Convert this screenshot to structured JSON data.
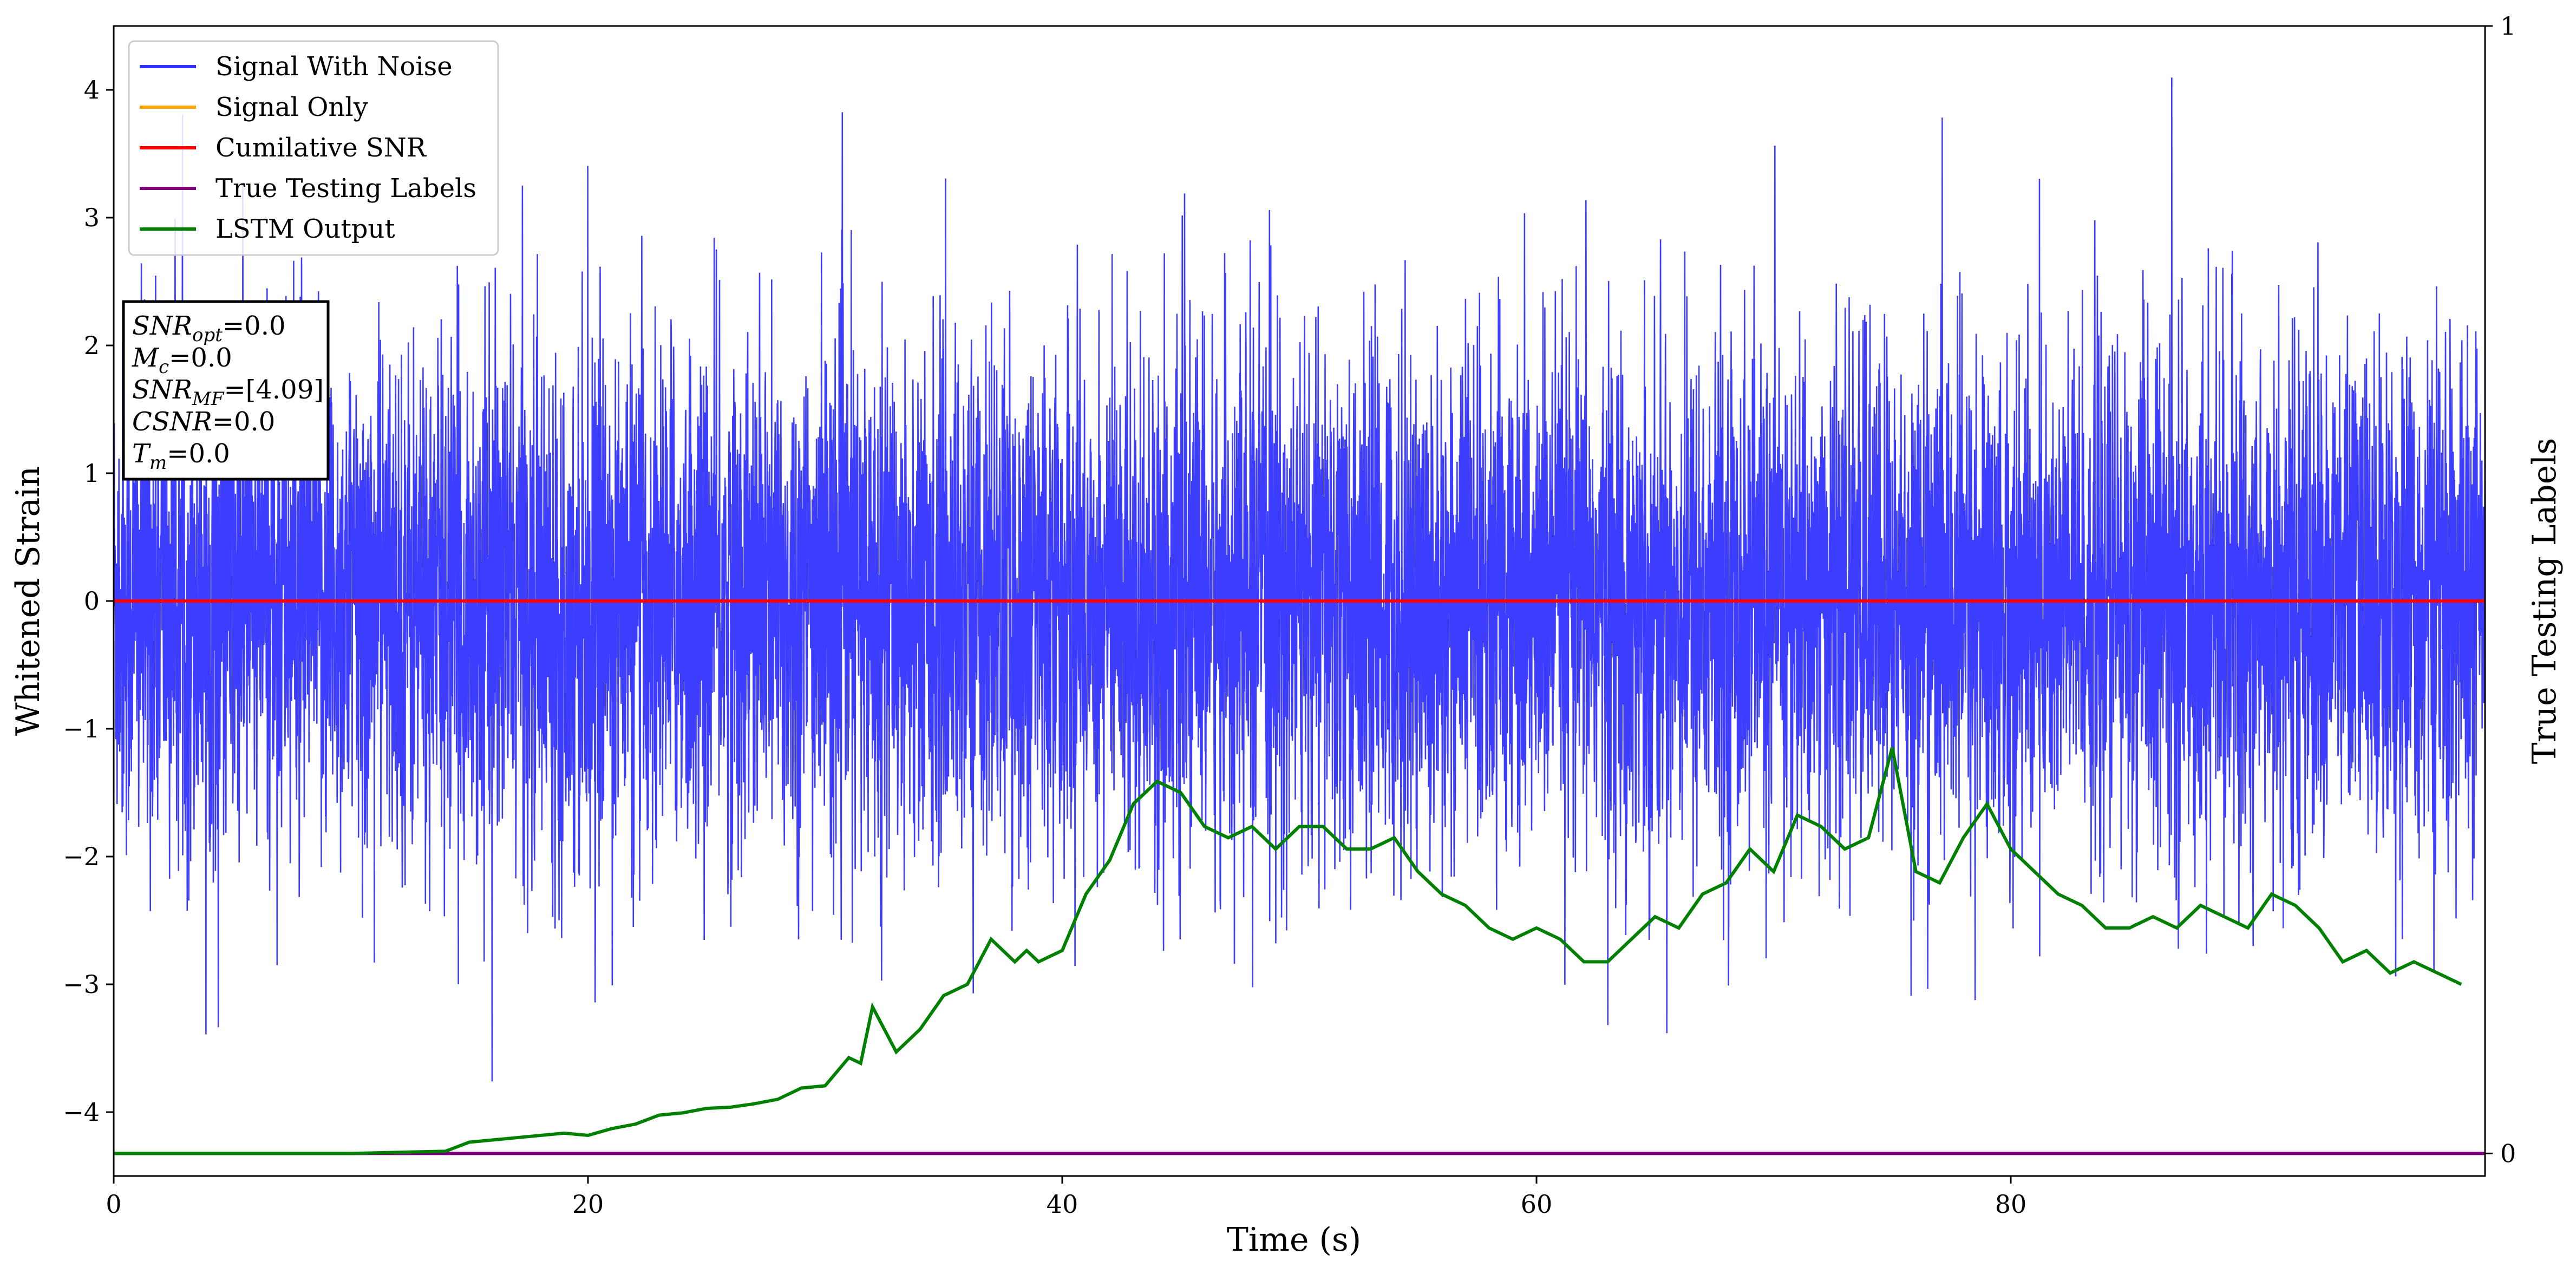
{
  "chart_data": {
    "type": "line",
    "xlabel": "Time (s)",
    "ylabel": "Whitened Strain",
    "y2label": "True Testing Labels",
    "xlim": [
      0,
      100
    ],
    "ylim": [
      -4.5,
      4.5
    ],
    "y2lim": [
      -0.02,
      1
    ],
    "xticks": [
      "0",
      "20",
      "40",
      "60",
      "80"
    ],
    "yticks": [
      "−4",
      "−3",
      "−2",
      "−1",
      "0",
      "1",
      "2",
      "3",
      "4"
    ],
    "y2ticks": [
      "0",
      "1"
    ],
    "legend_position": "top-left",
    "legend": [
      "Signal With Noise",
      "Signal Only",
      "Cumilative SNR",
      "True Testing Labels",
      "LSTM Output"
    ],
    "annotation": {
      "lines": [
        {
          "sym": "SNR",
          "sub": "opt",
          "val": "=0.0"
        },
        {
          "sym": "M",
          "sub": "c",
          "val": "=0.0"
        },
        {
          "sym": "SNR",
          "sub": "MF",
          "val": "=[4.09]"
        },
        {
          "sym": "CSNR",
          "sub": "",
          "val": "=0.0"
        },
        {
          "sym": "T",
          "sub": "m",
          "val": "=0.0"
        }
      ]
    },
    "series": [
      {
        "name": "Signal With Noise",
        "color": "#3333ff",
        "axis": "left",
        "kind": "noise",
        "spread": 1.0,
        "duration": 100
      },
      {
        "name": "Signal Only",
        "color": "#ffa500",
        "axis": "left",
        "x": [
          0,
          100
        ],
        "y": [
          0,
          0
        ]
      },
      {
        "name": "Cumilative SNR",
        "color": "#ff0000",
        "axis": "left",
        "x": [
          0,
          100
        ],
        "y": [
          0,
          0
        ]
      },
      {
        "name": "True Testing Labels",
        "color": "#800080",
        "axis": "right",
        "x": [
          0,
          100
        ],
        "y": [
          0,
          0
        ]
      },
      {
        "name": "LSTM Output",
        "color": "#008000",
        "axis": "right",
        "x": [
          0,
          5,
          10,
          14,
          15,
          16,
          17,
          18,
          19,
          20,
          21,
          22,
          23,
          24,
          25,
          26,
          27,
          28,
          29,
          30,
          31,
          31.5,
          32,
          33,
          34,
          35,
          36,
          37,
          38,
          38.5,
          39,
          40,
          41,
          42,
          43,
          44,
          45,
          46,
          47,
          48,
          49,
          50,
          51,
          52,
          53,
          54,
          55,
          56,
          57,
          58,
          59,
          60,
          61,
          62,
          63,
          64,
          65,
          66,
          67,
          68,
          69,
          70,
          71,
          72,
          73,
          74,
          75,
          76,
          77,
          78,
          79,
          80,
          81,
          82,
          83,
          84,
          85,
          86,
          87,
          88,
          89,
          90,
          91,
          92,
          93,
          94,
          95,
          96,
          97,
          98,
          99
        ],
        "y": [
          0,
          0,
          0,
          0.002,
          0.01,
          0.012,
          0.014,
          0.016,
          0.018,
          0.016,
          0.022,
          0.026,
          0.034,
          0.036,
          0.04,
          0.041,
          0.044,
          0.048,
          0.058,
          0.06,
          0.085,
          0.08,
          0.13,
          0.09,
          0.11,
          0.14,
          0.15,
          0.19,
          0.17,
          0.18,
          0.17,
          0.18,
          0.23,
          0.26,
          0.31,
          0.33,
          0.32,
          0.29,
          0.28,
          0.29,
          0.27,
          0.29,
          0.29,
          0.27,
          0.27,
          0.28,
          0.25,
          0.23,
          0.22,
          0.2,
          0.19,
          0.2,
          0.19,
          0.17,
          0.17,
          0.19,
          0.21,
          0.2,
          0.23,
          0.24,
          0.27,
          0.25,
          0.3,
          0.29,
          0.27,
          0.28,
          0.36,
          0.25,
          0.24,
          0.28,
          0.31,
          0.27,
          0.25,
          0.23,
          0.22,
          0.2,
          0.2,
          0.21,
          0.2,
          0.22,
          0.21,
          0.2,
          0.23,
          0.22,
          0.2,
          0.17,
          0.18,
          0.16,
          0.17,
          0.16,
          0.15
        ]
      }
    ]
  }
}
